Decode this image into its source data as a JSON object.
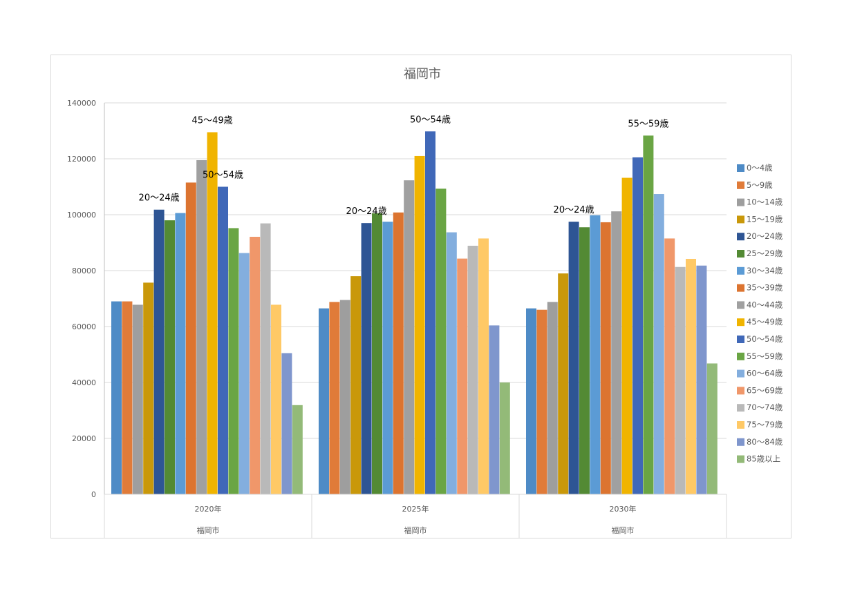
{
  "chart_data": {
    "type": "bar",
    "title": "福岡市",
    "categories": [
      "2020年",
      "2025年",
      "2030年"
    ],
    "group_label": "福岡市",
    "ylim": [
      0,
      140000
    ],
    "yticks": [
      "0",
      "20000",
      "40000",
      "60000",
      "80000",
      "100000",
      "120000",
      "140000"
    ],
    "grid": true,
    "legend_position": "right",
    "series": [
      {
        "name": "0～4歳",
        "color": "#4e8bc6",
        "values": [
          69000,
          66500,
          66500
        ]
      },
      {
        "name": "5～9歳",
        "color": "#e07b39",
        "values": [
          69000,
          68800,
          66000
        ]
      },
      {
        "name": "10～14歳",
        "color": "#9e9e9e",
        "values": [
          67800,
          69500,
          68800
        ]
      },
      {
        "name": "15～19歳",
        "color": "#c9980a",
        "values": [
          75700,
          78000,
          79000
        ]
      },
      {
        "name": "20～24歳",
        "color": "#2e5594",
        "values": [
          101800,
          97000,
          97500
        ]
      },
      {
        "name": "25～29歳",
        "color": "#538a34",
        "values": [
          98000,
          100500,
          95500
        ]
      },
      {
        "name": "30～34歳",
        "color": "#5b9bd5",
        "values": [
          100600,
          97500,
          99800
        ]
      },
      {
        "name": "35～39歳",
        "color": "#dc7430",
        "values": [
          111500,
          100800,
          97300
        ]
      },
      {
        "name": "40～44歳",
        "color": "#a0a0a0",
        "values": [
          119500,
          112300,
          101200
        ]
      },
      {
        "name": "45～49歳",
        "color": "#f0b400",
        "values": [
          129500,
          121000,
          113200
        ]
      },
      {
        "name": "50～54歳",
        "color": "#4068b8",
        "values": [
          110000,
          129800,
          120500
        ]
      },
      {
        "name": "55～59歳",
        "color": "#6aa544",
        "values": [
          95200,
          109300,
          128300
        ]
      },
      {
        "name": "60～64歳",
        "color": "#83aede",
        "values": [
          86300,
          93700,
          107400
        ]
      },
      {
        "name": "65～69歳",
        "color": "#f0976a",
        "values": [
          92100,
          84300,
          91500
        ]
      },
      {
        "name": "70～74歳",
        "color": "#b9b9b9",
        "values": [
          96900,
          88900,
          81300
        ]
      },
      {
        "name": "75～79歳",
        "color": "#ffc966",
        "values": [
          67800,
          91500,
          84200
        ]
      },
      {
        "name": "80～84歳",
        "color": "#7f96cd",
        "values": [
          50500,
          60400,
          81800
        ]
      },
      {
        "name": "85歳以上",
        "color": "#93ba78",
        "values": [
          31900,
          40000,
          46800
        ]
      }
    ],
    "annotations": [
      {
        "text": "20～24歳",
        "category_index": 0,
        "series_index": 4
      },
      {
        "text": "45～49歳",
        "category_index": 0,
        "series_index": 9
      },
      {
        "text": "50～54歳",
        "category_index": 0,
        "series_index": 10
      },
      {
        "text": "20～24歳",
        "category_index": 1,
        "series_index": 4
      },
      {
        "text": "50～54歳",
        "category_index": 1,
        "series_index": 10
      },
      {
        "text": "20～24歳",
        "category_index": 2,
        "series_index": 4
      },
      {
        "text": "55～59歳",
        "category_index": 2,
        "series_index": 11
      }
    ]
  }
}
